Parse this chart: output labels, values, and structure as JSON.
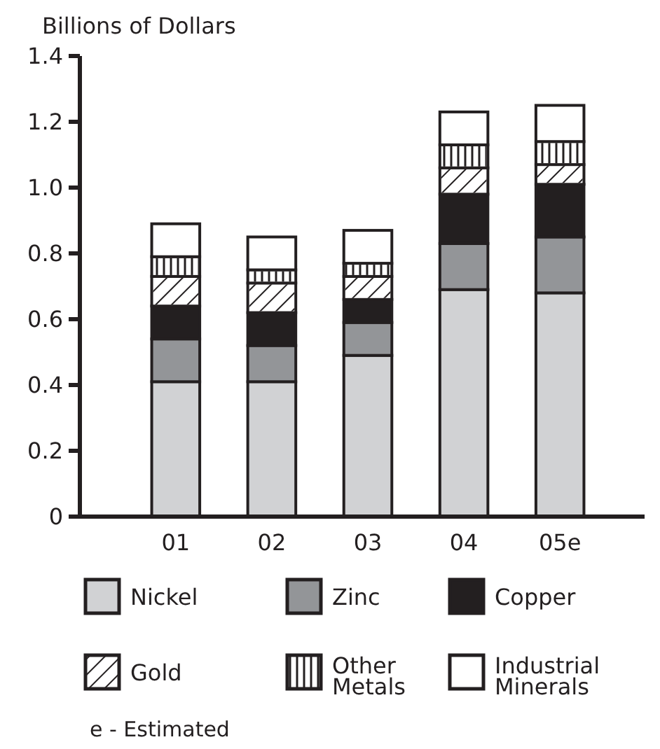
{
  "chart_data": {
    "type": "bar",
    "stacked": true,
    "ylabel": "Billions of Dollars",
    "categories": [
      "01",
      "02",
      "03",
      "04",
      "05e"
    ],
    "series": [
      {
        "name": "Nickel",
        "color": "#d1d2d4",
        "values": [
          0.41,
          0.41,
          0.49,
          0.69,
          0.68
        ]
      },
      {
        "name": "Zinc",
        "color": "#939598",
        "values": [
          0.13,
          0.11,
          0.1,
          0.14,
          0.17
        ]
      },
      {
        "name": "Copper",
        "color": "#231f20",
        "values": [
          0.1,
          0.1,
          0.07,
          0.15,
          0.16
        ]
      },
      {
        "name": "Gold",
        "color": "#ffffff",
        "values": [
          0.09,
          0.09,
          0.07,
          0.08,
          0.06
        ]
      },
      {
        "name": "Other Metals",
        "color": "#ffffff",
        "values": [
          0.06,
          0.04,
          0.04,
          0.07,
          0.07
        ]
      },
      {
        "name": "Industrial Minerals",
        "color": "#ffffff",
        "values": [
          0.1,
          0.1,
          0.1,
          0.1,
          0.11
        ]
      }
    ],
    "ylim": [
      0,
      1.4
    ],
    "yticks": [
      0,
      0.2,
      0.4,
      0.6,
      0.8,
      {
        "value": 1,
        "label": "1.0"
      },
      1.2,
      1.4
    ],
    "legend": "bottom",
    "annotations": [
      "e - Estimated"
    ]
  }
}
